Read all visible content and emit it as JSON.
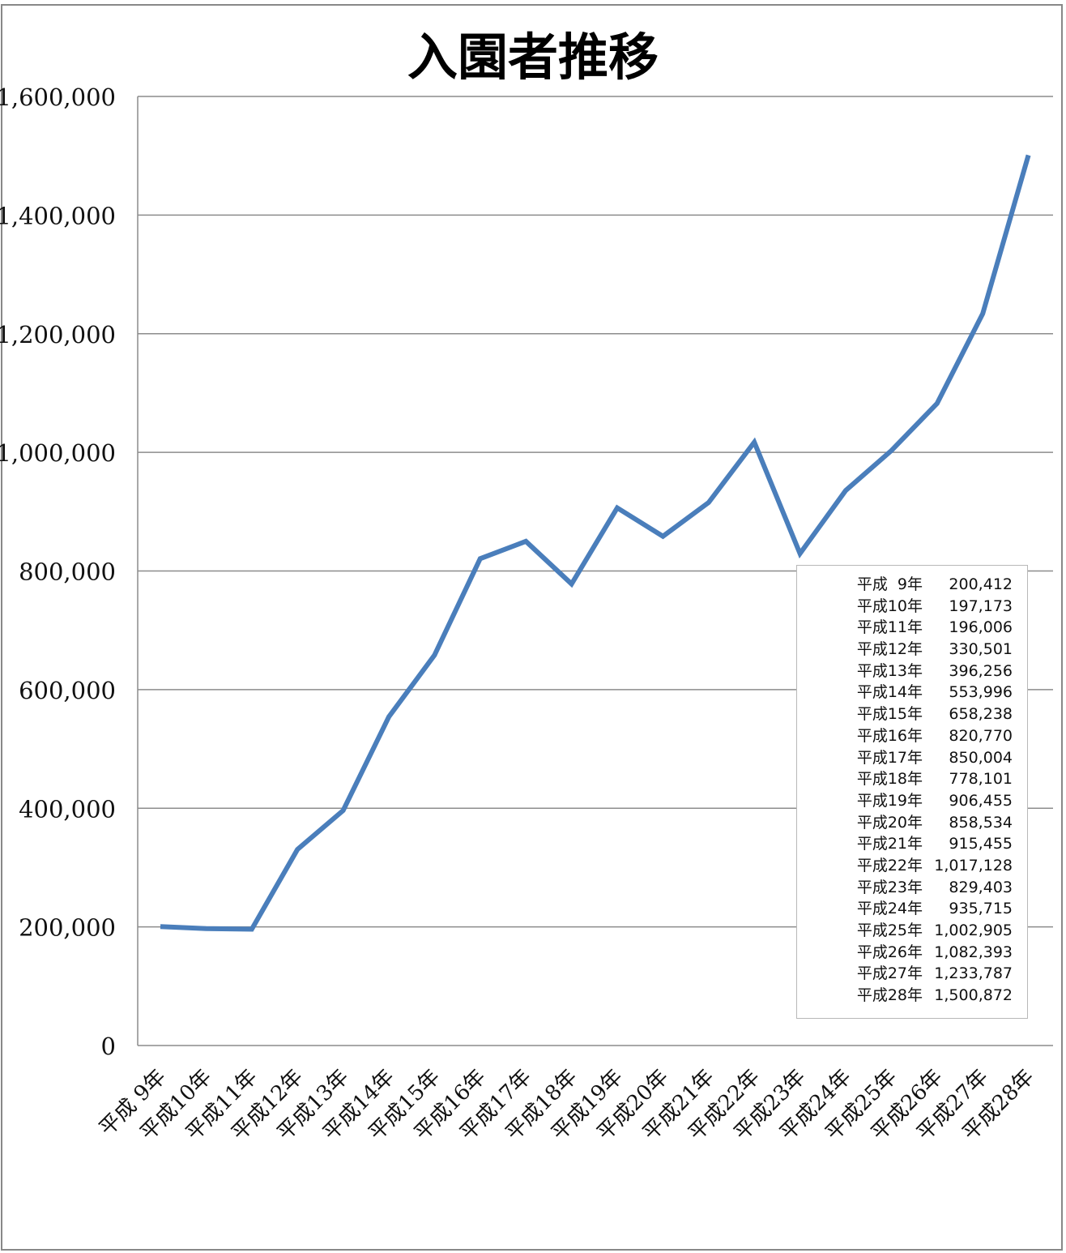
{
  "chart_data": {
    "type": "line",
    "title": "入園者推移",
    "xlabel": "",
    "ylabel": "",
    "ylim": [
      0,
      1600000
    ],
    "yticks": [
      "0",
      "200,000",
      "400,000",
      "600,000",
      "800,000",
      "1,000,000",
      "1,200,000",
      "1,400,000",
      "1,600,000"
    ],
    "grid": true,
    "line_color": "#4a7ebb",
    "categories": [
      "平成 9年",
      "平成10年",
      "平成11年",
      "平成12年",
      "平成13年",
      "平成14年",
      "平成15年",
      "平成16年",
      "平成17年",
      "平成18年",
      "平成19年",
      "平成20年",
      "平成21年",
      "平成22年",
      "平成23年",
      "平成24年",
      "平成25年",
      "平成26年",
      "平成27年",
      "平成28年"
    ],
    "values": [
      200412,
      197173,
      196006,
      330501,
      396256,
      553996,
      658238,
      820770,
      850004,
      778101,
      906455,
      858534,
      915455,
      1017128,
      829403,
      935715,
      1002905,
      1082393,
      1233787,
      1500872
    ],
    "table": {
      "position": "bottom-right",
      "rows": [
        {
          "label": "平成  9年",
          "value": "200,412"
        },
        {
          "label": "平成10年",
          "value": "197,173"
        },
        {
          "label": "平成11年",
          "value": "196,006"
        },
        {
          "label": "平成12年",
          "value": "330,501"
        },
        {
          "label": "平成13年",
          "value": "396,256"
        },
        {
          "label": "平成14年",
          "value": "553,996"
        },
        {
          "label": "平成15年",
          "value": "658,238"
        },
        {
          "label": "平成16年",
          "value": "820,770"
        },
        {
          "label": "平成17年",
          "value": "850,004"
        },
        {
          "label": "平成18年",
          "value": "778,101"
        },
        {
          "label": "平成19年",
          "value": "906,455"
        },
        {
          "label": "平成20年",
          "value": "858,534"
        },
        {
          "label": "平成21年",
          "value": "915,455"
        },
        {
          "label": "平成22年",
          "value": "1,017,128"
        },
        {
          "label": "平成23年",
          "value": "829,403"
        },
        {
          "label": "平成24年",
          "value": "935,715"
        },
        {
          "label": "平成25年",
          "value": "1,002,905"
        },
        {
          "label": "平成26年",
          "value": "1,082,393"
        },
        {
          "label": "平成27年",
          "value": "1,233,787"
        },
        {
          "label": "平成28年",
          "value": "1,500,872"
        }
      ]
    }
  }
}
